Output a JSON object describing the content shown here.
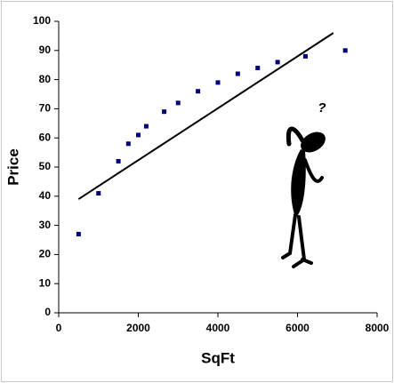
{
  "chart_data": {
    "type": "scatter",
    "x_label": "SqFt",
    "y_label": "Price",
    "annotation": "?",
    "series": [
      {
        "color": "#00007a",
        "x": [
          500,
          1000,
          1500,
          1750,
          2000,
          2200,
          2650,
          3000,
          3500,
          4000,
          4500,
          5000,
          5500,
          6200,
          7200
        ],
        "values": [
          27,
          41,
          52,
          58,
          61,
          64,
          69,
          72,
          76,
          79,
          82,
          84,
          86,
          88,
          90
        ]
      }
    ],
    "trendline": {
      "color": "#000000",
      "x": [
        500,
        6900
      ],
      "values": [
        39,
        96
      ]
    },
    "xlim": [
      0,
      8000
    ],
    "xticks": [
      0,
      2000,
      4000,
      6000,
      8000
    ],
    "ylim": [
      0,
      100
    ],
    "yticks": [
      0,
      10,
      20,
      30,
      40,
      50,
      60,
      70,
      80,
      90,
      100
    ],
    "grid": false
  }
}
